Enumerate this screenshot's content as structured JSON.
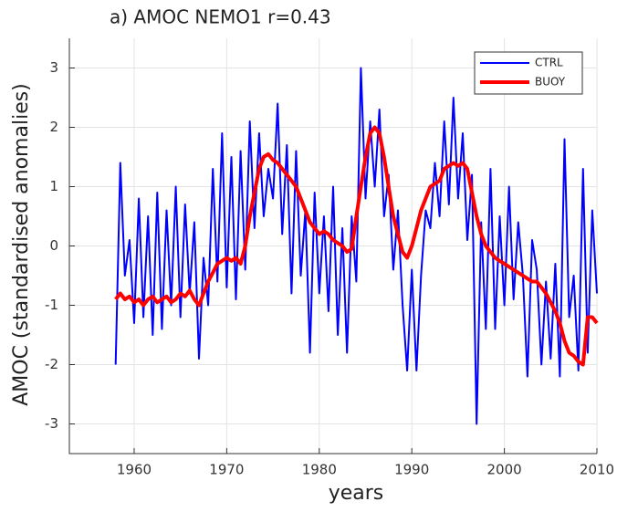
{
  "chart_data": {
    "type": "line",
    "title": "a) AMOC NEMO1 r=0.43",
    "xlabel": "years",
    "ylabel": "AMOC (standardised anomalies)",
    "x": [
      1958,
      1958.5,
      1959,
      1959.5,
      1960,
      1960.5,
      1961,
      1961.5,
      1962,
      1962.5,
      1963,
      1963.5,
      1964,
      1964.5,
      1965,
      1965.5,
      1966,
      1966.5,
      1967,
      1967.5,
      1968,
      1968.5,
      1969,
      1969.5,
      1970,
      1970.5,
      1971,
      1971.5,
      1972,
      1972.5,
      1973,
      1973.5,
      1974,
      1974.5,
      1975,
      1975.5,
      1976,
      1976.5,
      1977,
      1977.5,
      1978,
      1978.5,
      1979,
      1979.5,
      1980,
      1980.5,
      1981,
      1981.5,
      1982,
      1982.5,
      1983,
      1983.5,
      1984,
      1984.5,
      1985,
      1985.5,
      1986,
      1986.5,
      1987,
      1987.5,
      1988,
      1988.5,
      1989,
      1989.5,
      1990,
      1990.5,
      1991,
      1991.5,
      1992,
      1992.5,
      1993,
      1993.5,
      1994,
      1994.5,
      1995,
      1995.5,
      1996,
      1996.5,
      1997,
      1997.5,
      1998,
      1998.5,
      1999,
      1999.5,
      2000,
      2000.5,
      2001,
      2001.5,
      2002,
      2002.5,
      2003,
      2003.5,
      2004,
      2004.5,
      2005,
      2005.5,
      2006,
      2006.5,
      2007,
      2007.5,
      2008,
      2008.5,
      2009,
      2009.5,
      2010
    ],
    "series": [
      {
        "name": "CTRL",
        "color": "#0000ff",
        "width": 2,
        "values": [
          -2.0,
          1.4,
          -0.5,
          0.1,
          -1.3,
          0.8,
          -1.2,
          0.5,
          -1.5,
          0.9,
          -1.4,
          0.6,
          -1.0,
          1.0,
          -1.2,
          0.7,
          -0.8,
          0.4,
          -1.9,
          -0.2,
          -1.0,
          1.3,
          -0.6,
          1.9,
          -0.7,
          1.5,
          -0.9,
          1.6,
          -0.4,
          2.1,
          0.3,
          1.9,
          0.5,
          1.3,
          0.8,
          2.4,
          0.2,
          1.7,
          -0.8,
          1.6,
          -0.5,
          0.6,
          -1.8,
          0.9,
          -0.8,
          0.5,
          -1.1,
          1.0,
          -1.5,
          0.3,
          -1.8,
          0.5,
          -0.6,
          3.0,
          0.8,
          2.1,
          1.0,
          2.3,
          0.5,
          1.2,
          -0.4,
          0.6,
          -1.0,
          -2.1,
          -0.4,
          -2.1,
          -0.5,
          0.6,
          0.3,
          1.4,
          0.5,
          2.1,
          0.7,
          2.5,
          0.8,
          1.9,
          0.1,
          1.2,
          -3.0,
          0.4,
          -1.4,
          1.3,
          -1.4,
          0.5,
          -1.0,
          1.0,
          -0.9,
          0.4,
          -0.5,
          -2.2,
          0.1,
          -0.4,
          -2.0,
          -0.6,
          -1.9,
          -0.3,
          -2.2,
          1.8,
          -1.2,
          -0.5,
          -2.1,
          1.3,
          -1.8,
          0.6,
          -0.8
        ]
      },
      {
        "name": "BUOY",
        "color": "#ff0000",
        "width": 4,
        "values": [
          -0.9,
          -0.8,
          -0.9,
          -0.85,
          -0.95,
          -0.9,
          -1.0,
          -0.9,
          -0.85,
          -0.95,
          -0.9,
          -0.85,
          -0.95,
          -0.9,
          -0.8,
          -0.85,
          -0.75,
          -0.9,
          -1.0,
          -0.8,
          -0.6,
          -0.45,
          -0.3,
          -0.25,
          -0.2,
          -0.25,
          -0.2,
          -0.3,
          0.0,
          0.5,
          0.9,
          1.3,
          1.5,
          1.55,
          1.45,
          1.4,
          1.3,
          1.2,
          1.1,
          1.0,
          0.8,
          0.6,
          0.4,
          0.3,
          0.2,
          0.25,
          0.2,
          0.1,
          0.05,
          0.0,
          -0.1,
          -0.05,
          0.5,
          1.0,
          1.5,
          1.9,
          2.0,
          1.9,
          1.5,
          1.0,
          0.5,
          0.2,
          -0.1,
          -0.2,
          0.0,
          0.3,
          0.6,
          0.8,
          1.0,
          1.05,
          1.1,
          1.3,
          1.35,
          1.4,
          1.35,
          1.4,
          1.3,
          0.9,
          0.5,
          0.2,
          0.0,
          -0.1,
          -0.2,
          -0.25,
          -0.3,
          -0.35,
          -0.4,
          -0.45,
          -0.5,
          -0.55,
          -0.6,
          -0.6,
          -0.7,
          -0.8,
          -0.95,
          -1.1,
          -1.3,
          -1.6,
          -1.8,
          -1.85,
          -1.95,
          -2.0,
          -1.2,
          -1.2,
          -1.3
        ]
      }
    ],
    "xlim": [
      1953,
      2010
    ],
    "xticks": [
      1960,
      1970,
      1980,
      1990,
      2000,
      2010
    ],
    "ylim": [
      -3.5,
      3.5
    ],
    "yticks": [
      -3,
      -2,
      -1,
      0,
      1,
      2,
      3
    ],
    "grid": true,
    "legend": "upper right"
  }
}
